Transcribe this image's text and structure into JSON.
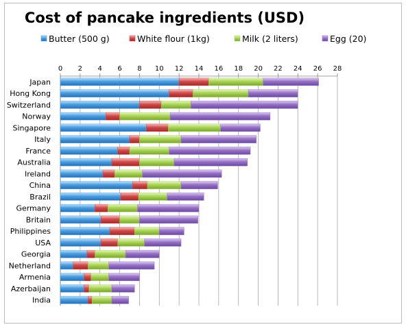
{
  "chart_data": {
    "type": "bar",
    "orientation": "horizontal",
    "stacked": true,
    "title": "Cost of pancake ingredients (USD)",
    "xlim": [
      0,
      28
    ],
    "xticks": [
      0,
      2,
      4,
      6,
      8,
      10,
      12,
      14,
      16,
      18,
      20,
      22,
      24,
      26,
      28
    ],
    "x_axis_position": "top",
    "grid": true,
    "legend_position": "top",
    "categories": [
      "Japan",
      "Hong Kong",
      "Switzerland",
      "Norway",
      "Singapore",
      "Italy",
      "France",
      "Australia",
      "Ireland",
      "China",
      "Brazil",
      "Germany",
      "Britain",
      "Philippines",
      "USA",
      "Georgia",
      "Netherland",
      "Armenia",
      "Azerbaijan",
      "India"
    ],
    "series": [
      {
        "name": "Butter (500 g)",
        "color": "#4a9ee0",
        "values": [
          12.0,
          11.0,
          8.0,
          4.6,
          8.7,
          7.0,
          5.8,
          5.2,
          4.3,
          7.3,
          6.1,
          3.5,
          4.1,
          5.0,
          4.1,
          2.7,
          1.3,
          2.4,
          2.4,
          2.8
        ]
      },
      {
        "name": "White flour (1kg)",
        "color": "#d24a4a",
        "values": [
          3.0,
          2.4,
          2.2,
          1.4,
          2.2,
          1.0,
          1.2,
          2.8,
          1.2,
          1.5,
          1.8,
          1.3,
          1.9,
          2.5,
          1.7,
          0.8,
          1.5,
          0.7,
          0.5,
          0.4
        ]
      },
      {
        "name": "Milk (2 liters)",
        "color": "#a9d454",
        "values": [
          5.5,
          5.6,
          3.0,
          5.1,
          5.3,
          4.2,
          4.0,
          3.5,
          2.8,
          3.4,
          2.9,
          3.0,
          2.0,
          2.5,
          2.7,
          3.1,
          2.1,
          1.8,
          2.3,
          2.0
        ]
      },
      {
        "name": "Egg (20)",
        "color": "#9671c6",
        "values": [
          5.6,
          5.0,
          10.8,
          10.1,
          4.0,
          7.6,
          8.2,
          7.4,
          8.0,
          3.7,
          3.7,
          6.2,
          5.9,
          2.5,
          3.7,
          3.4,
          4.6,
          3.1,
          2.3,
          1.7
        ]
      }
    ]
  }
}
